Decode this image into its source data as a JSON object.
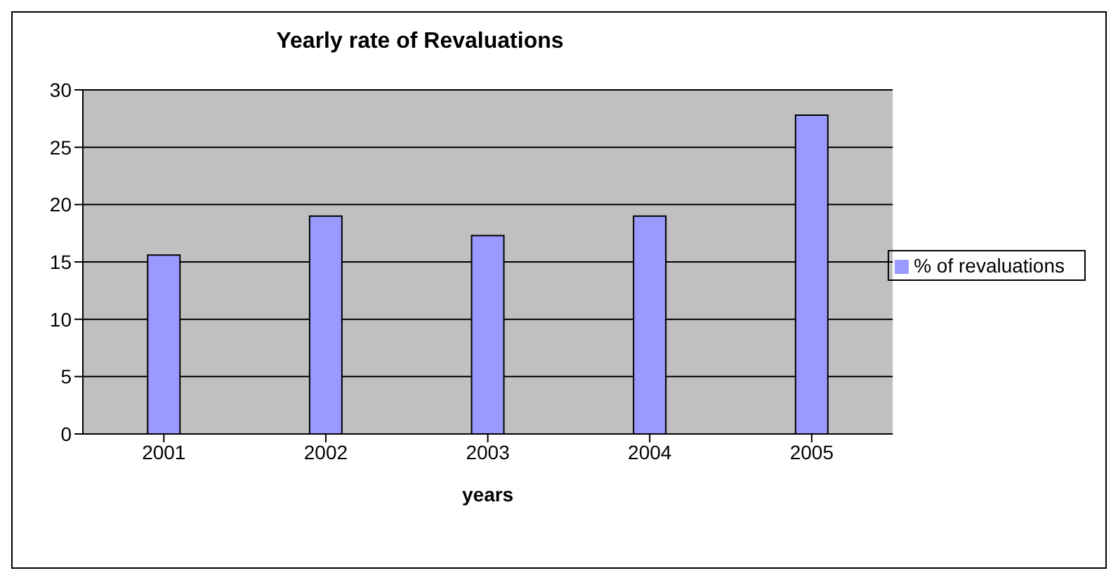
{
  "chart_data": {
    "type": "bar",
    "title": "Yearly rate of Revaluations",
    "xlabel": "years",
    "categories": [
      "2001",
      "2002",
      "2003",
      "2004",
      "2005"
    ],
    "series": [
      {
        "name": "% of revaluations",
        "color": "#9999ff",
        "values": [
          15.6,
          19,
          17.3,
          19,
          27.8
        ]
      }
    ],
    "ylim": [
      0,
      30
    ],
    "yticks": [
      0,
      5,
      10,
      15,
      20,
      25,
      30
    ],
    "grid": "y",
    "legend": "right"
  }
}
